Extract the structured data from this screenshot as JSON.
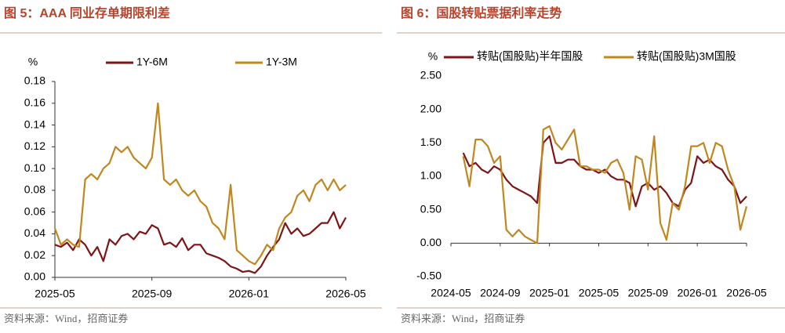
{
  "chart_data": [
    {
      "type": "line",
      "title": "图 5：AAA 同业存单期限利差",
      "y_label": "%",
      "legend": "top",
      "source": "资料来源：Wind，招商证券",
      "categories": [
        "2025-05",
        null,
        null,
        null,
        null,
        null,
        null,
        null,
        null,
        null,
        null,
        null,
        null,
        null,
        null,
        null,
        "2025-09",
        null,
        null,
        null,
        null,
        null,
        null,
        null,
        null,
        null,
        null,
        null,
        null,
        null,
        null,
        null,
        "2026-01",
        null,
        null,
        null,
        null,
        null,
        null,
        null,
        null,
        null,
        null,
        null,
        null,
        null,
        null,
        null,
        "2026-05"
      ],
      "series": [
        {
          "name": "1Y-6M",
          "color": "#7f1416",
          "values": [
            0.03,
            0.028,
            0.032,
            0.025,
            0.035,
            0.03,
            0.02,
            0.028,
            0.015,
            0.035,
            0.03,
            0.038,
            0.04,
            0.035,
            0.042,
            0.04,
            0.048,
            0.045,
            0.03,
            0.032,
            0.028,
            0.036,
            0.025,
            0.03,
            0.03,
            0.022,
            0.02,
            0.018,
            0.015,
            0.01,
            0.008,
            0.005,
            0.006,
            0.004,
            0.01,
            0.02,
            0.028,
            0.035,
            0.05,
            0.04,
            0.045,
            0.038,
            0.04,
            0.045,
            0.05,
            0.05,
            0.06,
            0.045,
            0.055
          ]
        },
        {
          "name": "1Y-3M",
          "color": "#c0871f",
          "values": [
            0.045,
            0.03,
            0.035,
            0.03,
            0.028,
            0.09,
            0.095,
            0.09,
            0.1,
            0.105,
            0.12,
            0.115,
            0.12,
            0.11,
            0.105,
            0.1,
            0.11,
            0.16,
            0.09,
            0.085,
            0.09,
            0.08,
            0.075,
            0.08,
            0.07,
            0.065,
            0.05,
            0.045,
            0.035,
            0.085,
            0.025,
            0.02,
            0.015,
            0.012,
            0.02,
            0.03,
            0.025,
            0.045,
            0.055,
            0.06,
            0.075,
            0.08,
            0.07,
            0.085,
            0.09,
            0.08,
            0.09,
            0.08,
            0.085
          ]
        }
      ],
      "ylim": [
        0,
        0.18
      ],
      "yticks": [
        {
          "value": 0,
          "label": "0.00"
        },
        {
          "value": 0.02,
          "label": "0.02"
        },
        {
          "value": 0.04,
          "label": "0.04"
        },
        {
          "value": 0.06,
          "label": "0.06"
        },
        {
          "value": 0.08,
          "label": "0.08"
        },
        {
          "value": 0.1,
          "label": "0.10"
        },
        {
          "value": 0.12,
          "label": "0.12"
        },
        {
          "value": 0.14,
          "label": "0.14"
        },
        {
          "value": 0.16,
          "label": "0.16"
        },
        {
          "value": 0.18,
          "label": "0.18"
        }
      ]
    },
    {
      "type": "line",
      "title": "图 6：国股转贴票据利率走势",
      "y_label": "%",
      "legend": "top-left",
      "source": "资料来源：Wind，招商证券",
      "categories": [
        "2024-05",
        null,
        null,
        null,
        null,
        null,
        null,
        null,
        "2024-09",
        null,
        null,
        null,
        null,
        null,
        null,
        null,
        "2025-01",
        null,
        null,
        null,
        null,
        null,
        null,
        null,
        "2025-05",
        null,
        null,
        null,
        null,
        null,
        null,
        null,
        "2025-09",
        null,
        null,
        null,
        null,
        null,
        null,
        null,
        "2026-01",
        null,
        null,
        null,
        null,
        null,
        null,
        null,
        "2026-05"
      ],
      "series": [
        {
          "name": "转贴(国股贴)半年国股",
          "color": "#7f1416",
          "values": [
            null,
            null,
            1.35,
            1.15,
            1.2,
            1.1,
            1.05,
            1.15,
            1.1,
            0.95,
            0.85,
            0.8,
            0.75,
            0.7,
            0.6,
            1.5,
            1.6,
            1.2,
            1.2,
            1.25,
            1.25,
            1.15,
            1.1,
            1.1,
            1.05,
            1.1,
            1.0,
            0.95,
            0.95,
            0.9,
            0.55,
            0.85,
            0.9,
            0.8,
            0.85,
            0.75,
            0.6,
            0.55,
            0.8,
            0.9,
            1.3,
            1.2,
            1.25,
            1.15,
            1.1,
            0.95,
            0.85,
            0.6,
            0.7
          ]
        },
        {
          "name": "转贴(国股贴)3M国股",
          "color": "#c0871f",
          "values": [
            null,
            null,
            1.3,
            0.85,
            1.55,
            1.55,
            1.45,
            1.2,
            1.3,
            0.2,
            0.1,
            0.2,
            0.1,
            0.05,
            0.0,
            1.7,
            1.75,
            1.5,
            1.4,
            1.55,
            1.7,
            1.15,
            1.15,
            1.1,
            1.1,
            1.05,
            1.2,
            1.25,
            1.05,
            0.5,
            1.3,
            1.25,
            0.8,
            1.6,
            0.3,
            0.05,
            0.6,
            0.5,
            0.85,
            1.45,
            1.45,
            1.5,
            1.2,
            1.5,
            1.45,
            1.1,
            0.85,
            0.2,
            0.55
          ]
        }
      ],
      "ylim": [
        -0.5,
        2.5
      ],
      "yticks": [
        {
          "value": -0.5,
          "label": "-0.50"
        },
        {
          "value": 0,
          "label": "0.00"
        },
        {
          "value": 0.5,
          "label": "0.50"
        },
        {
          "value": 1,
          "label": "1.00"
        },
        {
          "value": 1.5,
          "label": "1.50"
        },
        {
          "value": 2,
          "label": "2.00"
        },
        {
          "value": 2.5,
          "label": "2.50"
        }
      ]
    }
  ]
}
